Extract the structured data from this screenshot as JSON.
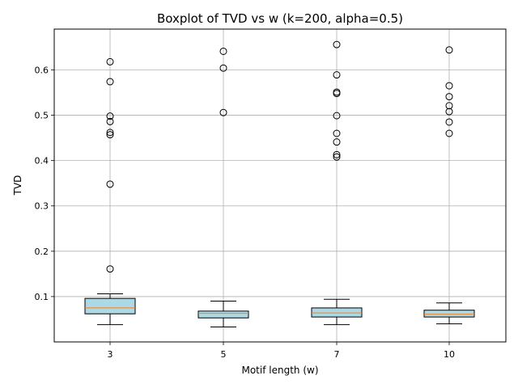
{
  "chart_data": {
    "type": "boxplot",
    "title": "Boxplot of TVD vs w (k=200, alpha=0.5)",
    "xlabel": "Motif length (w)",
    "ylabel": "TVD",
    "ylim": [
      0.0,
      0.69
    ],
    "yticks": [
      0.1,
      0.2,
      0.3,
      0.4,
      0.5,
      0.6
    ],
    "grid": true,
    "box_color": "#add8e6",
    "median_color": "#ff7f0e",
    "categories": [
      "3",
      "5",
      "7",
      "10"
    ],
    "boxes": [
      {
        "category": "3",
        "whisker_low": 0.038,
        "q1": 0.062,
        "median": 0.075,
        "q3": 0.096,
        "whisker_high": 0.106,
        "outliers": [
          0.618,
          0.574,
          0.498,
          0.486,
          0.462,
          0.457,
          0.348,
          0.161
        ]
      },
      {
        "category": "5",
        "whisker_low": 0.033,
        "q1": 0.053,
        "median": 0.063,
        "q3": 0.068,
        "whisker_high": 0.09,
        "outliers": [
          0.641,
          0.604,
          0.506
        ]
      },
      {
        "category": "7",
        "whisker_low": 0.038,
        "q1": 0.055,
        "median": 0.064,
        "q3": 0.075,
        "whisker_high": 0.094,
        "outliers": [
          0.656,
          0.589,
          0.551,
          0.548,
          0.499,
          0.46,
          0.441,
          0.413,
          0.408
        ]
      },
      {
        "category": "10",
        "whisker_low": 0.04,
        "q1": 0.055,
        "median": 0.061,
        "q3": 0.07,
        "whisker_high": 0.086,
        "outliers": [
          0.644,
          0.565,
          0.541,
          0.521,
          0.508,
          0.485,
          0.46
        ]
      }
    ]
  }
}
